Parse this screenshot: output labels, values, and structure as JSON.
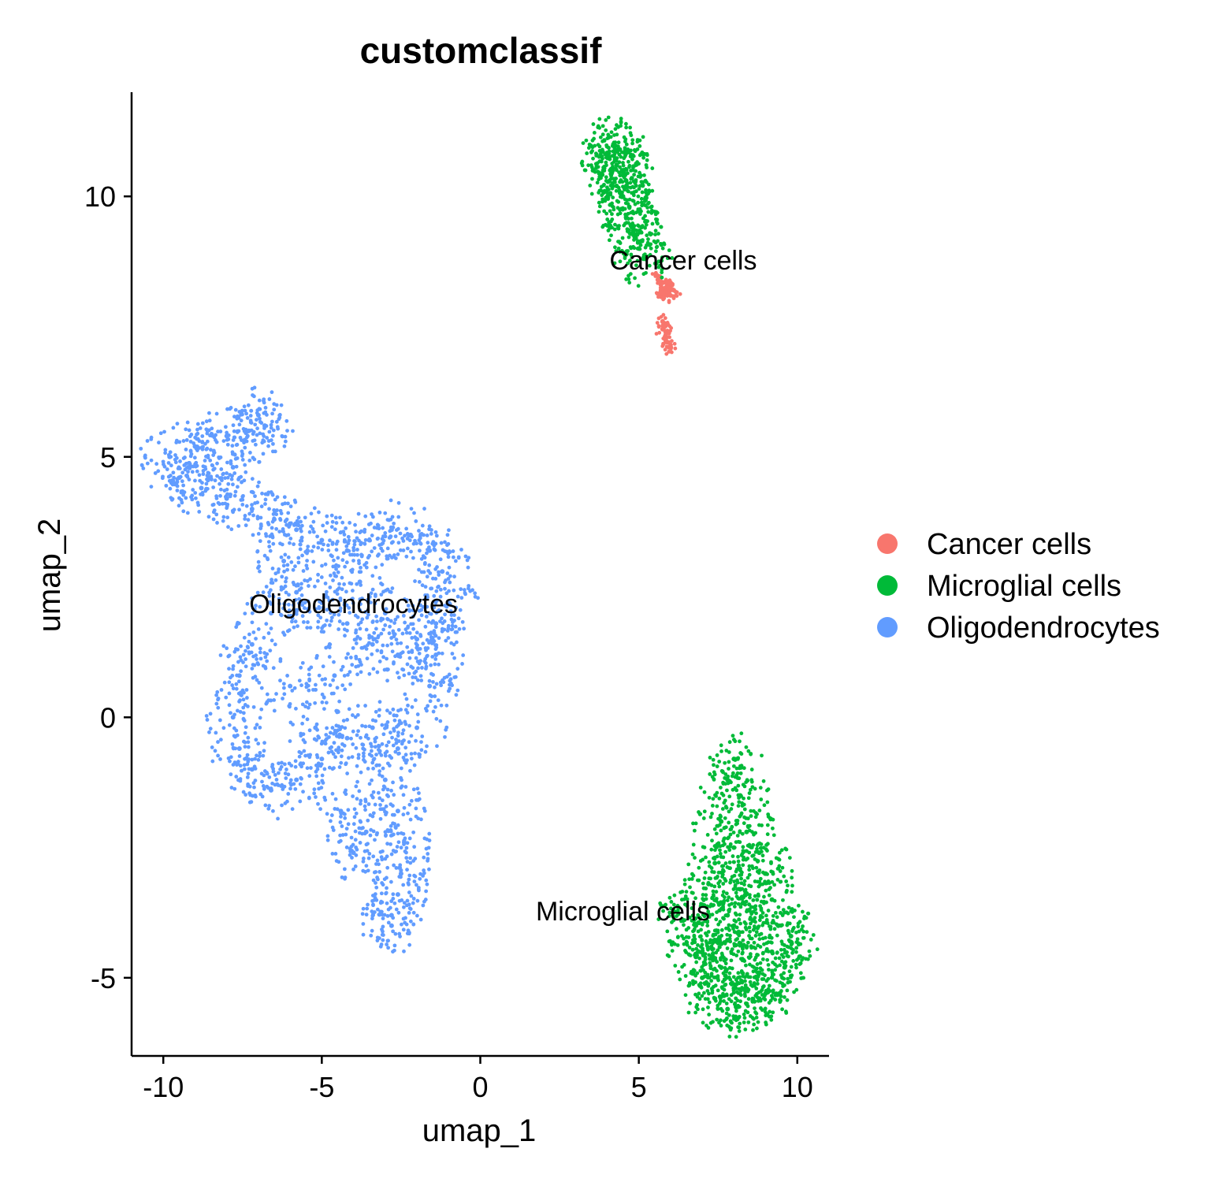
{
  "chart_data": {
    "type": "scatter",
    "title": "customclassif",
    "xlabel": "umap_1",
    "ylabel": "umap_2",
    "xlim": [
      -11,
      11
    ],
    "ylim": [
      -6.5,
      12
    ],
    "xticks": [
      -10,
      -5,
      0,
      5,
      10
    ],
    "xtick_labels": [
      "-10",
      "-5",
      "0",
      "5",
      "10"
    ],
    "yticks": [
      -5,
      0,
      5,
      10
    ],
    "ytick_labels": [
      "-5",
      "0",
      "5",
      "10"
    ],
    "grid": false,
    "legend_position": "right",
    "series": [
      {
        "name": "Cancer cells",
        "color": "#F8766D",
        "points": [
          [
            5.6,
            8.4
          ],
          [
            5.7,
            8.3
          ],
          [
            5.8,
            8.2
          ],
          [
            5.9,
            8.3
          ],
          [
            6.0,
            8.2
          ],
          [
            5.8,
            8.1
          ],
          [
            5.9,
            8.1
          ],
          [
            6.0,
            8.1
          ],
          [
            6.1,
            8.2
          ],
          [
            5.7,
            8.2
          ],
          [
            5.8,
            8.35
          ],
          [
            6.05,
            8.3
          ],
          [
            5.95,
            8.15
          ],
          [
            5.75,
            7.6
          ],
          [
            5.8,
            7.5
          ],
          [
            5.85,
            7.4
          ],
          [
            5.9,
            7.55
          ],
          [
            5.75,
            7.45
          ],
          [
            5.9,
            7.2
          ],
          [
            5.95,
            7.1
          ],
          [
            6.0,
            7.15
          ],
          [
            5.85,
            7.25
          ]
        ]
      },
      {
        "name": "Microglial cells",
        "color": "#00BA38",
        "points": [
          [
            4.2,
            11.0
          ],
          [
            4.4,
            10.9
          ],
          [
            4.0,
            10.8
          ],
          [
            4.3,
            10.6
          ],
          [
            4.5,
            10.5
          ],
          [
            4.1,
            10.5
          ],
          [
            4.6,
            10.3
          ],
          [
            4.3,
            10.2
          ],
          [
            4.5,
            10.0
          ],
          [
            4.7,
            9.8
          ],
          [
            4.6,
            9.6
          ],
          [
            4.8,
            9.4
          ],
          [
            4.9,
            9.2
          ],
          [
            5.0,
            9.0
          ],
          [
            5.2,
            8.8
          ],
          [
            8.0,
            -0.8
          ],
          [
            7.8,
            -1.2
          ],
          [
            8.2,
            -1.5
          ],
          [
            7.6,
            -2.0
          ],
          [
            8.4,
            -2.2
          ],
          [
            8.0,
            -2.5
          ],
          [
            7.4,
            -2.8
          ],
          [
            8.8,
            -2.6
          ],
          [
            9.0,
            -3.0
          ],
          [
            7.2,
            -3.2
          ],
          [
            8.2,
            -3.3
          ],
          [
            9.2,
            -3.5
          ],
          [
            7.0,
            -3.6
          ],
          [
            7.8,
            -3.8
          ],
          [
            8.6,
            -3.9
          ],
          [
            9.4,
            -4.0
          ],
          [
            6.8,
            -4.0
          ],
          [
            7.4,
            -4.3
          ],
          [
            8.4,
            -4.4
          ],
          [
            9.2,
            -4.5
          ],
          [
            6.8,
            -4.6
          ],
          [
            7.6,
            -4.8
          ],
          [
            8.8,
            -4.9
          ],
          [
            9.6,
            -4.8
          ],
          [
            7.0,
            -5.0
          ],
          [
            8.0,
            -5.2
          ],
          [
            9.0,
            -5.3
          ],
          [
            7.4,
            -5.4
          ],
          [
            8.4,
            -5.5
          ],
          [
            7.8,
            -5.6
          ],
          [
            8.8,
            -5.4
          ],
          [
            6.4,
            -3.9
          ],
          [
            9.8,
            -4.2
          ],
          [
            7.0,
            -4.5
          ],
          [
            8.0,
            -4.0
          ]
        ]
      },
      {
        "name": "Oligodendrocytes",
        "color": "#619CFF",
        "points": [
          [
            -7.0,
            5.8
          ],
          [
            -6.8,
            5.6
          ],
          [
            -7.3,
            5.5
          ],
          [
            -8.0,
            5.4
          ],
          [
            -9.0,
            5.2
          ],
          [
            -9.8,
            5.0
          ],
          [
            -9.5,
            4.6
          ],
          [
            -8.8,
            4.4
          ],
          [
            -8.0,
            4.2
          ],
          [
            -7.2,
            4.0
          ],
          [
            -6.5,
            3.8
          ],
          [
            -5.8,
            3.6
          ],
          [
            -5.0,
            3.4
          ],
          [
            -4.2,
            3.2
          ],
          [
            -3.5,
            3.4
          ],
          [
            -2.8,
            3.6
          ],
          [
            -2.2,
            3.5
          ],
          [
            -1.6,
            3.2
          ],
          [
            -1.2,
            2.8
          ],
          [
            -1.0,
            2.2
          ],
          [
            -1.4,
            1.8
          ],
          [
            -2.0,
            1.5
          ],
          [
            -2.6,
            1.2
          ],
          [
            -3.4,
            1.4
          ],
          [
            -4.2,
            1.8
          ],
          [
            -5.0,
            2.2
          ],
          [
            -5.8,
            2.4
          ],
          [
            -6.6,
            2.0
          ],
          [
            -7.2,
            1.4
          ],
          [
            -7.6,
            0.8
          ],
          [
            -7.8,
            0.0
          ],
          [
            -7.6,
            -0.6
          ],
          [
            -7.2,
            -1.0
          ],
          [
            -6.6,
            -1.4
          ],
          [
            -5.8,
            -1.2
          ],
          [
            -5.0,
            -0.8
          ],
          [
            -4.2,
            -0.4
          ],
          [
            -3.4,
            -0.2
          ],
          [
            -2.6,
            -0.6
          ],
          [
            -2.0,
            -0.2
          ],
          [
            -1.6,
            0.6
          ],
          [
            -1.4,
            1.2
          ],
          [
            -3.0,
            -1.2
          ],
          [
            -2.6,
            -1.8
          ],
          [
            -2.4,
            -2.4
          ],
          [
            -2.5,
            -3.0
          ],
          [
            -2.6,
            -3.4
          ],
          [
            -2.8,
            -3.8
          ],
          [
            -2.8,
            -4.0
          ],
          [
            -3.6,
            -2.2
          ],
          [
            -4.0,
            -2.6
          ],
          [
            -4.4,
            -1.8
          ],
          [
            -5.2,
            -0.2
          ],
          [
            -6.0,
            0.6
          ],
          [
            -4.6,
            0.8
          ],
          [
            -3.8,
            2.6
          ],
          [
            -6.2,
            3.0
          ],
          [
            -7.8,
            4.8
          ],
          [
            -9.2,
            4.8
          ],
          [
            -3.0,
            2.0
          ]
        ]
      }
    ],
    "cluster_labels": [
      {
        "text": "Cancer cells",
        "x": 6.4,
        "y": 8.6
      },
      {
        "text": "Oligodendrocytes",
        "x": -4.0,
        "y": 2.0
      },
      {
        "text": "Microglial cells",
        "x": 4.5,
        "y": -3.9
      }
    ]
  }
}
